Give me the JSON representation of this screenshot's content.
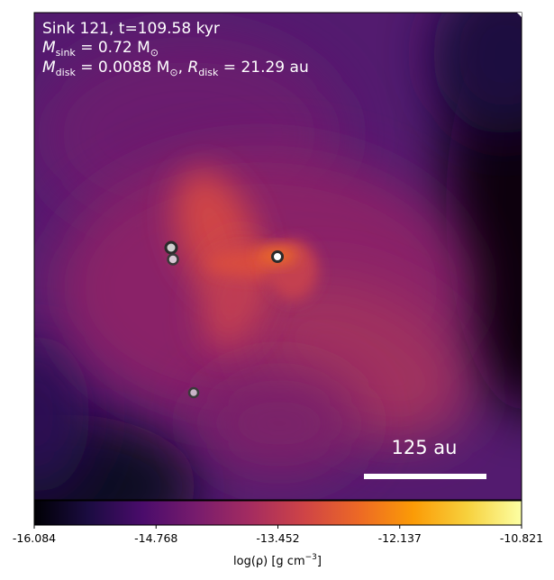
{
  "annotation": {
    "line1": "Sink 121, t=109.58 kyr",
    "line2_symbol": "M",
    "line2_sub": "sink",
    "line2_value": " = 0.72 M",
    "line2_unit_sub": "⊙",
    "line3_symbol": "M",
    "line3_sub": "disk",
    "line3_value": " = 0.0088 M",
    "line3_unit_sub": "⊙",
    "line3_sep": ", ",
    "line3_r_symbol": "R",
    "line3_r_sub": "disk",
    "line3_r_value": " = 21.29 au"
  },
  "scale_bar": {
    "label": "125 au"
  },
  "colorbar": {
    "ticks": [
      "-16.084",
      "-14.768",
      "-13.452",
      "-12.137",
      "-10.821"
    ],
    "label_main": "log(ρ) [g cm",
    "label_sup": "−3",
    "label_end": "]",
    "colormap": "inferno",
    "colors": [
      "#000004",
      "#1b0c41",
      "#4a0c6b",
      "#781c6d",
      "#a52c60",
      "#cf4446",
      "#ed6925",
      "#fb9b06",
      "#f7d13d",
      "#fcffa4"
    ]
  },
  "map": {
    "background": "#531b6f",
    "sinks": [
      {
        "name": "sink-a",
        "fill": "#cfcfcf"
      },
      {
        "name": "sink-b",
        "fill": "#d7c8d4"
      },
      {
        "name": "sink-c",
        "fill": "#ffffff"
      },
      {
        "name": "sink-d",
        "fill": "#c9b4c7"
      }
    ]
  }
}
